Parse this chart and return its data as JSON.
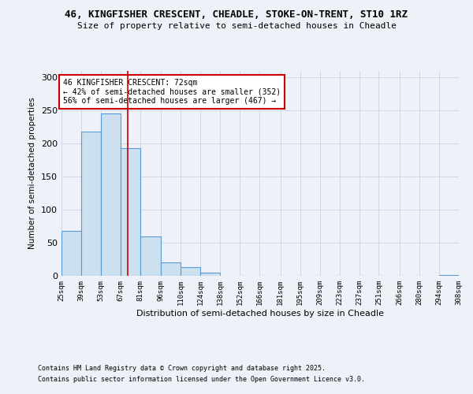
{
  "title_line1": "46, KINGFISHER CRESCENT, CHEADLE, STOKE-ON-TRENT, ST10 1RZ",
  "title_line2": "Size of property relative to semi-detached houses in Cheadle",
  "xlabel": "Distribution of semi-detached houses by size in Cheadle",
  "ylabel": "Number of semi-detached properties",
  "bin_edges": [
    25,
    39,
    53,
    67,
    81,
    96,
    110,
    124,
    138,
    152,
    166,
    181,
    195,
    209,
    223,
    237,
    251,
    266,
    280,
    294,
    308
  ],
  "bin_counts": [
    68,
    218,
    246,
    193,
    60,
    20,
    13,
    5,
    0,
    0,
    0,
    0,
    0,
    0,
    0,
    0,
    0,
    0,
    0,
    1
  ],
  "tick_labels": [
    "25sqm",
    "39sqm",
    "53sqm",
    "67sqm",
    "81sqm",
    "96sqm",
    "110sqm",
    "124sqm",
    "138sqm",
    "152sqm",
    "166sqm",
    "181sqm",
    "195sqm",
    "209sqm",
    "223sqm",
    "237sqm",
    "251sqm",
    "266sqm",
    "280sqm",
    "294sqm",
    "308sqm"
  ],
  "property_size": 72,
  "bar_facecolor": "#cce0f0",
  "bar_edgecolor": "#5b9bd5",
  "redline_color": "#cc0000",
  "annotation_text": "46 KINGFISHER CRESCENT: 72sqm\n← 42% of semi-detached houses are smaller (352)\n56% of semi-detached houses are larger (467) →",
  "annotation_box_color": "#ffffff",
  "annotation_box_edgecolor": "#cc0000",
  "grid_color": "#d0d8e8",
  "background_color": "#eef2f8",
  "ylim": [
    0,
    310
  ],
  "yticks": [
    0,
    50,
    100,
    150,
    200,
    250,
    300
  ],
  "footnote1": "Contains HM Land Registry data © Crown copyright and database right 2025.",
  "footnote2": "Contains public sector information licensed under the Open Government Licence v3.0."
}
